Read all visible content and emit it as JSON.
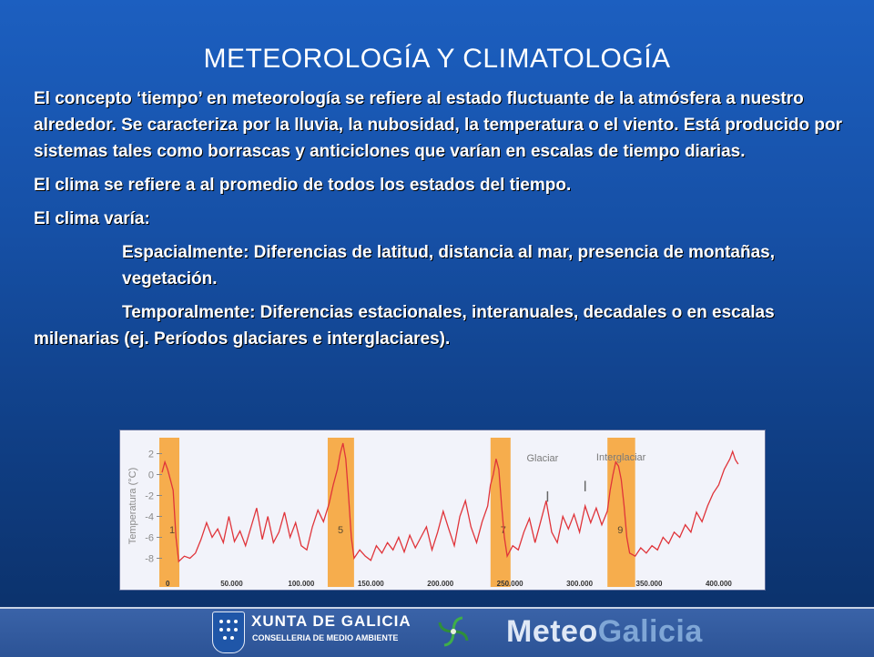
{
  "slide": {
    "title": "METEOROLOGÍA Y CLIMATOLOGÍA",
    "paragraphs": [
      "El concepto ‘tiempo’ en meteorología se refiere al estado fluctuante de la atmósfera a nuestro alrededor. Se caracteriza por la lluvia, la nubosidad, la temperatura o el viento. Está producido por sistemas tales como borrascas y anticiclones que varían en escalas de tiempo diarias.",
      "El clima se refiere a al promedio de todos los estados del tiempo.",
      "El clima varía:",
      "Espacialmente: Diferencias de latitud, distancia al mar, presencia de montañas, vegetación.",
      "Temporalmente: Diferencias estacionales, interanuales, decadales o en escalas milenarias (ej. Períodos glaciares e interglaciares)."
    ]
  },
  "chart_data": {
    "type": "line",
    "ylabel": "Temperatura (°C)",
    "ylim": [
      -9,
      3
    ],
    "xlim": [
      0,
      420000
    ],
    "yticks": [
      "2",
      "0",
      "-2",
      "-4",
      "-6",
      "-8"
    ],
    "xticks": [
      "0",
      "50.000",
      "100.000",
      "150.000",
      "200.000",
      "250.000",
      "300.000",
      "350.000",
      "400.000"
    ],
    "xtick_values": [
      0,
      50000,
      100000,
      150000,
      200000,
      250000,
      300000,
      350000,
      400000
    ],
    "legend_labels": [
      "Glaciar",
      "Interglaciar"
    ],
    "interglacial_bands": [
      {
        "label": "1",
        "from": 0,
        "to": 8000
      },
      {
        "label": "5",
        "from": 121000,
        "to": 136000
      },
      {
        "label": "7",
        "from": 238000,
        "to": 248000
      },
      {
        "label": "9",
        "from": 322000,
        "to": 338000
      }
    ],
    "band_color": "#f6a53a",
    "line_color": "#e0343a",
    "series": [
      {
        "values": [
          [
            0,
            0.2
          ],
          [
            2000,
            1.2
          ],
          [
            4000,
            0.5
          ],
          [
            6000,
            -0.5
          ],
          [
            8000,
            -1.5
          ],
          [
            10000,
            -6
          ],
          [
            12000,
            -8.3
          ],
          [
            16000,
            -7.8
          ],
          [
            20000,
            -8
          ],
          [
            24000,
            -7.5
          ],
          [
            28000,
            -6.2
          ],
          [
            32000,
            -4.6
          ],
          [
            36000,
            -6
          ],
          [
            40000,
            -5.2
          ],
          [
            44000,
            -6.5
          ],
          [
            48000,
            -4
          ],
          [
            52000,
            -6.4
          ],
          [
            56000,
            -5.4
          ],
          [
            60000,
            -6.8
          ],
          [
            64000,
            -5
          ],
          [
            68000,
            -3.2
          ],
          [
            72000,
            -6.2
          ],
          [
            76000,
            -4
          ],
          [
            80000,
            -6.5
          ],
          [
            84000,
            -5.5
          ],
          [
            88000,
            -3.6
          ],
          [
            92000,
            -6
          ],
          [
            96000,
            -4.6
          ],
          [
            100000,
            -6.8
          ],
          [
            104000,
            -7.2
          ],
          [
            108000,
            -5
          ],
          [
            112000,
            -3.4
          ],
          [
            116000,
            -4.5
          ],
          [
            120000,
            -2.8
          ],
          [
            123000,
            -1
          ],
          [
            126000,
            0.5
          ],
          [
            128000,
            2
          ],
          [
            130000,
            3
          ],
          [
            132000,
            1.5
          ],
          [
            134000,
            -2
          ],
          [
            136000,
            -6
          ],
          [
            138000,
            -8
          ],
          [
            142000,
            -7.2
          ],
          [
            146000,
            -7.8
          ],
          [
            150000,
            -8.2
          ],
          [
            154000,
            -6.8
          ],
          [
            158000,
            -7.5
          ],
          [
            162000,
            -6.5
          ],
          [
            166000,
            -7.2
          ],
          [
            170000,
            -6
          ],
          [
            174000,
            -7.4
          ],
          [
            178000,
            -5.8
          ],
          [
            182000,
            -7
          ],
          [
            186000,
            -6
          ],
          [
            190000,
            -5
          ],
          [
            194000,
            -7.2
          ],
          [
            198000,
            -5.5
          ],
          [
            202000,
            -3.5
          ],
          [
            206000,
            -5.2
          ],
          [
            210000,
            -6.8
          ],
          [
            214000,
            -4
          ],
          [
            218000,
            -2.5
          ],
          [
            222000,
            -5
          ],
          [
            226000,
            -6.5
          ],
          [
            230000,
            -4.5
          ],
          [
            234000,
            -3
          ],
          [
            236000,
            -1
          ],
          [
            238000,
            0
          ],
          [
            240000,
            1.5
          ],
          [
            242000,
            0.5
          ],
          [
            244000,
            -3
          ],
          [
            246000,
            -6
          ],
          [
            248000,
            -7.8
          ],
          [
            252000,
            -6.8
          ],
          [
            256000,
            -7.2
          ],
          [
            260000,
            -5.5
          ],
          [
            264000,
            -4.2
          ],
          [
            268000,
            -6.5
          ],
          [
            272000,
            -4.5
          ],
          [
            276000,
            -2.5
          ],
          [
            280000,
            -5.5
          ],
          [
            284000,
            -6.5
          ],
          [
            288000,
            -4
          ],
          [
            292000,
            -5.2
          ],
          [
            296000,
            -3.8
          ],
          [
            300000,
            -5.5
          ],
          [
            304000,
            -3
          ],
          [
            308000,
            -4.6
          ],
          [
            312000,
            -3.2
          ],
          [
            316000,
            -4.8
          ],
          [
            320000,
            -3.5
          ],
          [
            322000,
            -1.5
          ],
          [
            324000,
            0
          ],
          [
            326000,
            1.2
          ],
          [
            328000,
            0.8
          ],
          [
            330000,
            -0.5
          ],
          [
            332000,
            -3
          ],
          [
            334000,
            -6
          ],
          [
            336000,
            -7.5
          ],
          [
            340000,
            -7.8
          ],
          [
            344000,
            -7
          ],
          [
            348000,
            -7.5
          ],
          [
            352000,
            -6.8
          ],
          [
            356000,
            -7.2
          ],
          [
            360000,
            -6
          ],
          [
            364000,
            -6.6
          ],
          [
            368000,
            -5.5
          ],
          [
            372000,
            -6
          ],
          [
            376000,
            -4.8
          ],
          [
            380000,
            -5.5
          ],
          [
            384000,
            -3.6
          ],
          [
            388000,
            -4.5
          ],
          [
            392000,
            -3
          ],
          [
            396000,
            -1.8
          ],
          [
            400000,
            -1
          ],
          [
            404000,
            0.5
          ],
          [
            408000,
            1.5
          ],
          [
            410000,
            2.2
          ],
          [
            412000,
            1.4
          ],
          [
            414000,
            1
          ]
        ]
      }
    ]
  },
  "footer": {
    "org_name": "XUNTA DE GALICIA",
    "org_department": "CONSELLERIA DE MEDIO AMBIENTE",
    "brand_part1": "Meteo",
    "brand_part2": "Galicia"
  }
}
